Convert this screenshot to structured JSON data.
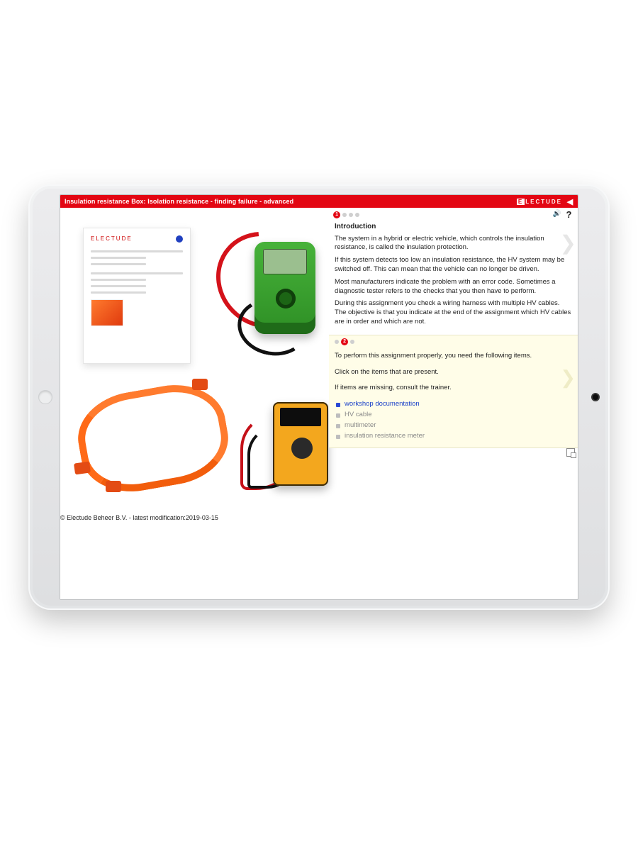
{
  "header": {
    "title": "Insulation resistance Box: Isolation resistance - finding failure - advanced",
    "brand_prefix": "E",
    "brand_rest": "LECTUDE",
    "back_glyph": "◀"
  },
  "left": {
    "doc_brand": "ELECTUDE",
    "copyright": "© Electude Beheer B.V. - latest modification:2019-03-15"
  },
  "intro": {
    "step_active": "1",
    "heading": "Introduction",
    "p1": "The system in a hybrid or electric vehicle, which controls the insulation resistance, is called the insulation protection.",
    "p2": "If this system detects too low an insulation resistance, the HV system may be switched off. This can mean that the vehicle can no longer be driven.",
    "p3": "Most manufacturers indicate the problem with an error code. Sometimes a diagnostic tester refers to the checks that you then have to perform.",
    "p4": "During this assignment you check a wiring harness with multiple HV cables. The objective is that you indicate at the end of the assignment which HV cables are in order and which are not."
  },
  "note": {
    "step_active": "2",
    "line1": "To perform this assignment properly, you need the following items.",
    "line2": "Click on the items that are present.",
    "line3": "If items are missing, consult the trainer.",
    "items": [
      {
        "label": "workshop documentation",
        "selected": true
      },
      {
        "label": "HV cable",
        "selected": false
      },
      {
        "label": "multimeter",
        "selected": false
      },
      {
        "label": "insulation resistance meter",
        "selected": false
      }
    ]
  },
  "icons": {
    "sound": "🔊",
    "help": "?",
    "chev": "❯"
  }
}
